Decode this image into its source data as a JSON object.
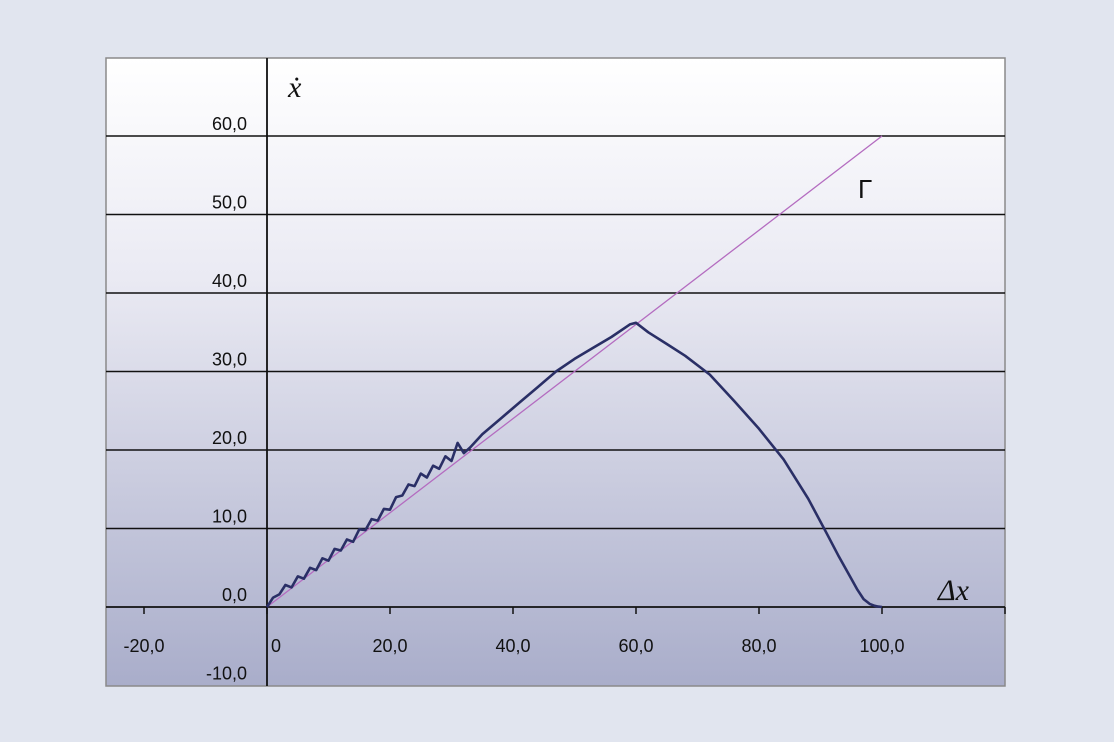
{
  "chart_data": {
    "type": "line",
    "xlabel": "Δx",
    "ylabel": "ẋ",
    "xlim": [
      -20,
      120
    ],
    "ylim": [
      -10,
      70
    ],
    "x_ticks": [
      -20,
      0,
      20,
      40,
      60,
      80,
      100
    ],
    "x_tick_labels": [
      "-20,0",
      "0",
      "20,0",
      "40,0",
      "60,0",
      "80,0",
      "100,0"
    ],
    "y_ticks": [
      -10,
      0,
      10,
      20,
      30,
      40,
      50,
      60
    ],
    "y_tick_labels": [
      "-10,0",
      "0,0",
      "10,0",
      "20,0",
      "30,0",
      "40,0",
      "50,0",
      "60,0"
    ],
    "grid": "horizontal",
    "series": [
      {
        "name": "Γ",
        "color": "#b46cc0",
        "x": [
          0,
          100
        ],
        "y": [
          0,
          60
        ]
      },
      {
        "color": "#2a2f66",
        "x": [
          0,
          1,
          2,
          3,
          4,
          5,
          6,
          7,
          8,
          9,
          10,
          11,
          12,
          13,
          14,
          15,
          16,
          17,
          18,
          19,
          20,
          21,
          22,
          23,
          24,
          25,
          26,
          27,
          28,
          29,
          30,
          31,
          32,
          33,
          35,
          38,
          41,
          44,
          47,
          50,
          53,
          56,
          59,
          60,
          62,
          65,
          68,
          72,
          76,
          80,
          84,
          88,
          91,
          93,
          95,
          96,
          97,
          98,
          98.8,
          99.4,
          100
        ],
        "y": [
          0,
          1.2,
          1.6,
          2.8,
          2.5,
          3.9,
          3.6,
          5.0,
          4.7,
          6.2,
          5.9,
          7.4,
          7.2,
          8.6,
          8.3,
          9.9,
          9.8,
          11.2,
          11.0,
          12.5,
          12.4,
          14.0,
          14.2,
          15.6,
          15.4,
          17.0,
          16.5,
          18.0,
          17.6,
          19.2,
          18.6,
          20.9,
          19.6,
          20.3,
          22.0,
          24.0,
          26.0,
          28.0,
          30.0,
          31.6,
          33.0,
          34.4,
          36.0,
          36.2,
          35.0,
          33.5,
          32.0,
          29.6,
          26.2,
          22.7,
          18.8,
          13.8,
          9.4,
          6.4,
          3.6,
          2.2,
          1.0,
          0.4,
          0.15,
          0.05,
          0
        ]
      }
    ],
    "annotations": [
      "Γ"
    ]
  }
}
